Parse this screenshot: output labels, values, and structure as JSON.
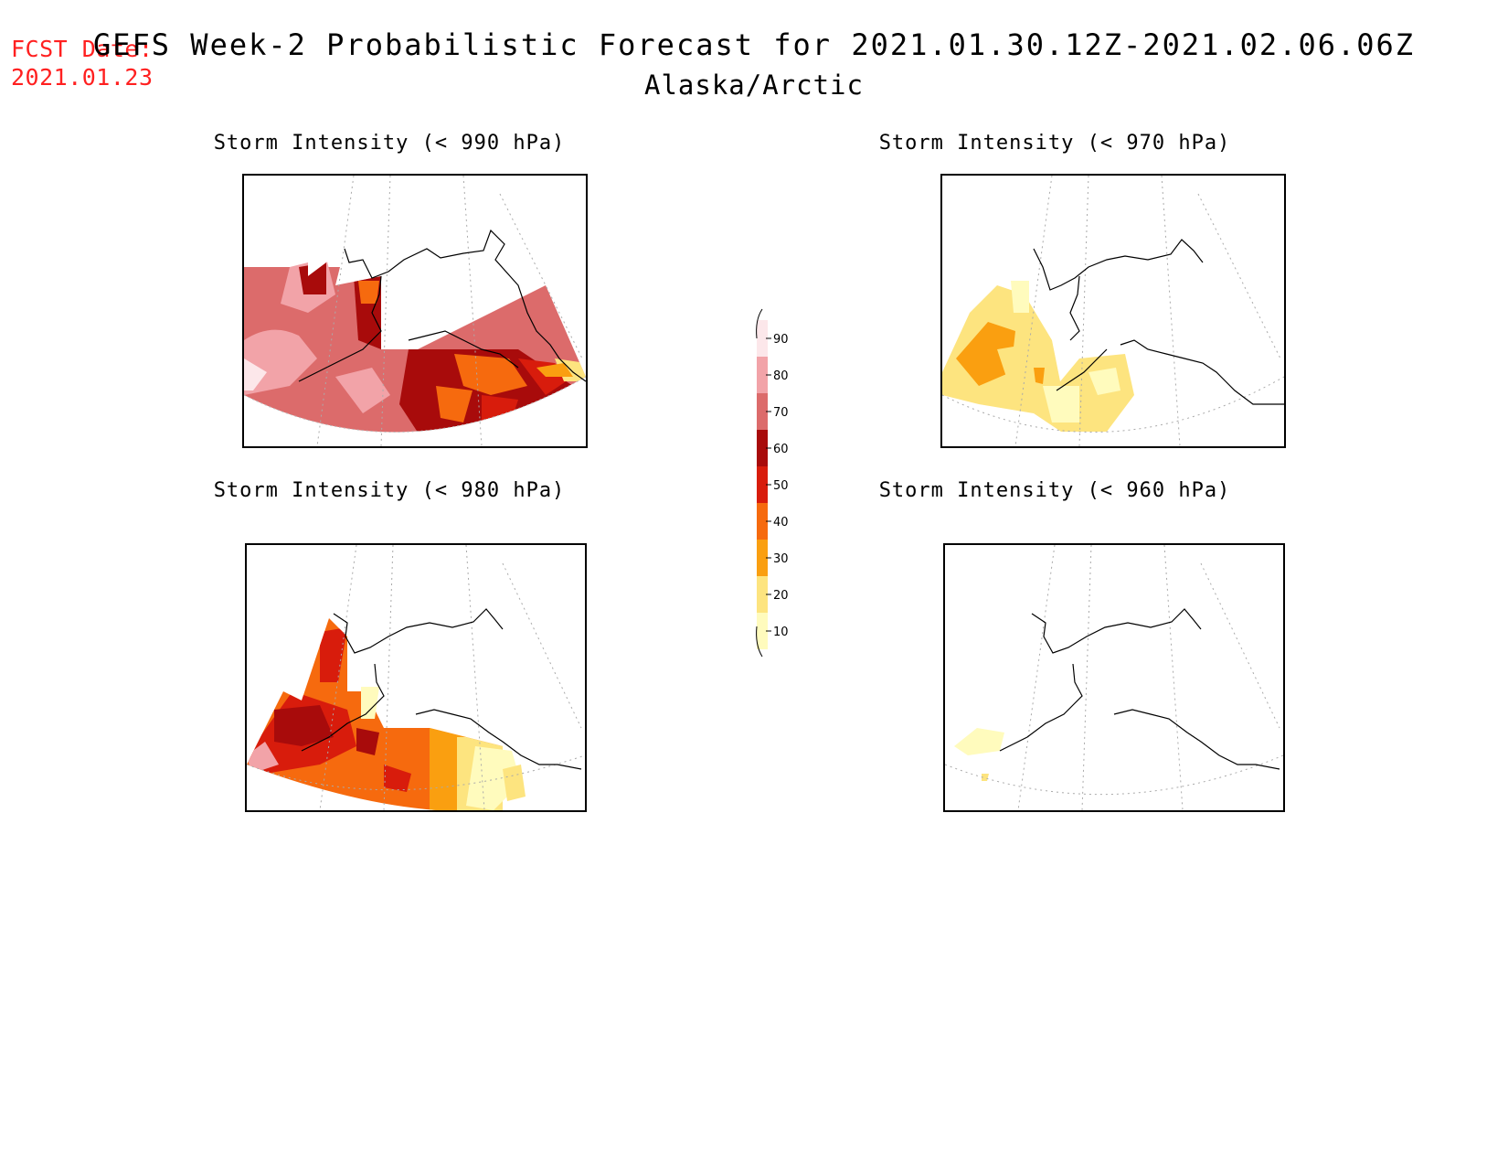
{
  "header": {
    "fcst_label": "FCST Date:",
    "fcst_date": "2021.01.23",
    "title": "GEFS Week-2 Probabilistic Forecast for 2021.01.30.12Z-2021.02.06.06Z",
    "region": "Alaska/Arctic"
  },
  "panels": [
    {
      "id": "p990",
      "title": "Storm Intensity (< 990 hPa)"
    },
    {
      "id": "p970",
      "title": "Storm Intensity (< 970 hPa)"
    },
    {
      "id": "p980",
      "title": "Storm Intensity (< 980 hPa)"
    },
    {
      "id": "p960",
      "title": "Storm Intensity (< 960 hPa)"
    }
  ],
  "colorbar": {
    "levels": [
      "90",
      "80",
      "70",
      "60",
      "50",
      "40",
      "30",
      "20",
      "10"
    ],
    "colors": [
      "#fce7ea",
      "#f2a3a8",
      "#dc6b6b",
      "#a80b0b",
      "#d81c0c",
      "#f66a0e",
      "#fa9f10",
      "#fde47f",
      "#fffbbd"
    ]
  }
}
